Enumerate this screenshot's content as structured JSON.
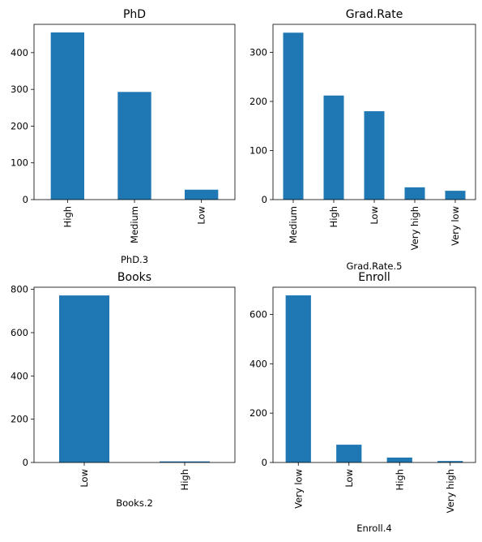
{
  "bar_color": "#1f77b4",
  "chart_data": [
    {
      "type": "bar",
      "title": "PhD",
      "xlabel": "PhD.3",
      "ylabel": "",
      "categories": [
        "High",
        "Medium",
        "Low"
      ],
      "values": [
        455,
        293,
        27
      ],
      "ylim": [
        0,
        477
      ],
      "yticks": [
        0,
        100,
        200,
        300,
        400
      ]
    },
    {
      "type": "bar",
      "title": "Grad.Rate",
      "xlabel": "Grad.Rate.5",
      "ylabel": "",
      "categories": [
        "Medium",
        "High",
        "Low",
        "Very high",
        "Very low"
      ],
      "values": [
        340,
        212,
        180,
        25,
        18
      ],
      "ylim": [
        0,
        357
      ],
      "yticks": [
        0,
        100,
        200,
        300
      ]
    },
    {
      "type": "bar",
      "title": "Books",
      "xlabel": "Books.2",
      "ylabel": "",
      "categories": [
        "Low",
        "High"
      ],
      "values": [
        772,
        5
      ],
      "ylim": [
        0,
        810
      ],
      "yticks": [
        0,
        200,
        400,
        600,
        800
      ]
    },
    {
      "type": "bar",
      "title": "Enroll",
      "xlabel": "Enroll.4",
      "ylabel": "",
      "categories": [
        "Very low",
        "Low",
        "High",
        "Very high"
      ],
      "values": [
        677,
        72,
        20,
        6
      ],
      "ylim": [
        0,
        710
      ],
      "yticks": [
        0,
        200,
        400,
        600
      ]
    }
  ]
}
